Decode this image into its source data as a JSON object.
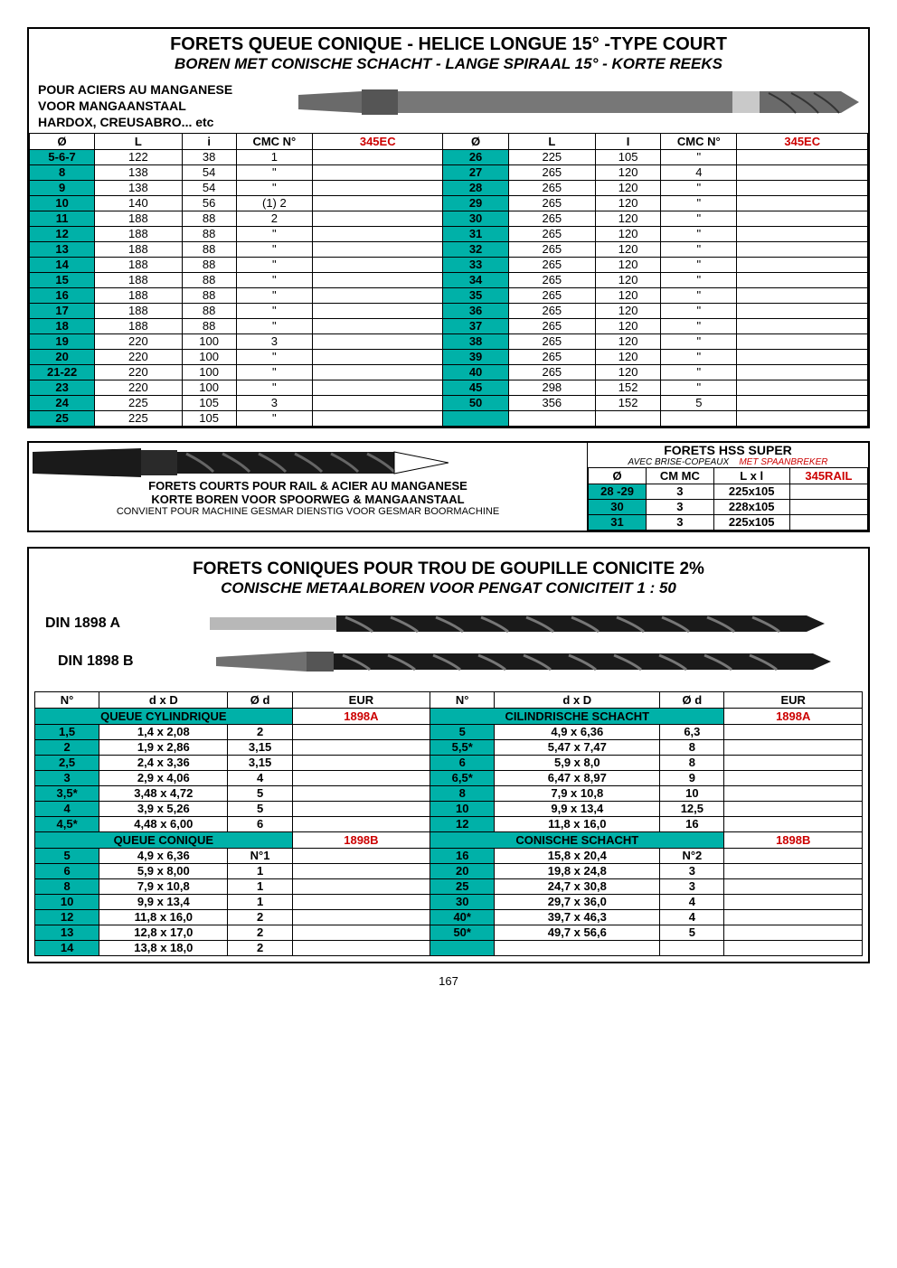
{
  "page_number": "167",
  "colors": {
    "teal": "#00b1a8",
    "red": "#cc0000",
    "border": "#000000",
    "bg": "#ffffff"
  },
  "section1": {
    "title_fr": "FORETS QUEUE CONIQUE  - HELICE LONGUE 15° -TYPE COURT",
    "title_nl": "BOREN MET CONISCHE SCHACHT - LANGE SPIRAAL 15° - KORTE REEKS",
    "material_fr": "POUR  ACIERS AU MANGANESE",
    "material_nl": "VOOR  MANGAANSTAAL",
    "material_note": "HARDOX, CREUSABRO... etc",
    "item_code": "345EC",
    "headers": [
      "Ø",
      "L",
      "i",
      "CMC N°",
      "345EC",
      "Ø",
      "L",
      "I",
      "CMC N°",
      "345EC"
    ],
    "rows_left": [
      [
        "5-6-7",
        "122",
        "38",
        "1",
        ""
      ],
      [
        "8",
        "138",
        "54",
        "\"",
        ""
      ],
      [
        "9",
        "138",
        "54",
        "\"",
        ""
      ],
      [
        "10",
        "140",
        "56",
        "(1) 2",
        ""
      ],
      [
        "11",
        "188",
        "88",
        "2",
        ""
      ],
      [
        "12",
        "188",
        "88",
        "\"",
        ""
      ],
      [
        "13",
        "188",
        "88",
        "\"",
        ""
      ],
      [
        "14",
        "188",
        "88",
        "\"",
        ""
      ],
      [
        "15",
        "188",
        "88",
        "\"",
        ""
      ],
      [
        "16",
        "188",
        "88",
        "\"",
        ""
      ],
      [
        "17",
        "188",
        "88",
        "\"",
        ""
      ],
      [
        "18",
        "188",
        "88",
        "\"",
        ""
      ],
      [
        "19",
        "220",
        "100",
        "3",
        ""
      ],
      [
        "20",
        "220",
        "100",
        "\"",
        ""
      ],
      [
        "21-22",
        "220",
        "100",
        "\"",
        ""
      ],
      [
        "23",
        "220",
        "100",
        "\"",
        ""
      ],
      [
        "24",
        "225",
        "105",
        "3",
        ""
      ],
      [
        "25",
        "225",
        "105",
        "\"",
        ""
      ]
    ],
    "rows_right": [
      [
        "26",
        "225",
        "105",
        "\"",
        ""
      ],
      [
        "27",
        "265",
        "120",
        "4",
        ""
      ],
      [
        "28",
        "265",
        "120",
        "\"",
        ""
      ],
      [
        "29",
        "265",
        "120",
        "\"",
        ""
      ],
      [
        "30",
        "265",
        "120",
        "\"",
        ""
      ],
      [
        "31",
        "265",
        "120",
        "\"",
        ""
      ],
      [
        "32",
        "265",
        "120",
        "\"",
        ""
      ],
      [
        "33",
        "265",
        "120",
        "\"",
        ""
      ],
      [
        "34",
        "265",
        "120",
        "\"",
        ""
      ],
      [
        "35",
        "265",
        "120",
        "\"",
        ""
      ],
      [
        "36",
        "265",
        "120",
        "\"",
        ""
      ],
      [
        "37",
        "265",
        "120",
        "\"",
        ""
      ],
      [
        "38",
        "265",
        "120",
        "\"",
        ""
      ],
      [
        "39",
        "265",
        "120",
        "\"",
        ""
      ],
      [
        "40",
        "265",
        "120",
        "\"",
        ""
      ],
      [
        "45",
        "298",
        "152",
        "\"",
        ""
      ],
      [
        "50",
        "356",
        "152",
        "5",
        ""
      ]
    ]
  },
  "section2": {
    "title_fr": "FORETS COURTS POUR RAIL & ACIER AU MANGANESE",
    "title_nl": "KORTE BOREN VOOR SPOORWEG & MANGAANSTAAL",
    "note": "CONVIENT POUR MACHINE GESMAR   DIENSTIG VOOR GESMAR BOORMACHINE",
    "right_title": "FORETS HSS SUPER",
    "right_sub_fr": "AVEC BRISE-COPEAUX",
    "right_sub_nl": "MET SPAANBREKER",
    "item_code": "345RAIL",
    "headers": [
      "Ø",
      "CM MC",
      "L x l",
      "345RAIL"
    ],
    "rows": [
      [
        "28 -29",
        "3",
        "225x105",
        ""
      ],
      [
        "30",
        "3",
        "228x105",
        ""
      ],
      [
        "31",
        "3",
        "225x105",
        ""
      ]
    ]
  },
  "section3": {
    "title_fr": "FORETS CONIQUES POUR TROU DE GOUPILLE CONICITE  2%",
    "title_nl": "CONISCHE METAALBOREN VOOR PENGAT CONICITEIT  1 : 50",
    "din_a": "DIN 1898 A",
    "din_b": "DIN 1898 B",
    "code_a": "1898A",
    "code_b": "1898B",
    "headers": [
      "N°",
      "d x D",
      "Ø d",
      "EUR",
      "N°",
      "d x D",
      "Ø d",
      "EUR"
    ],
    "sub_cyl_left": "QUEUE CYLINDRIQUE",
    "sub_cyl_right": "CILINDRISCHE SCHACHT",
    "sub_con_left": "QUEUE CONIQUE",
    "sub_con_right": "CONISCHE SCHACHT",
    "cyl_left": [
      [
        "1,5",
        "1,4 x 2,08",
        "2",
        ""
      ],
      [
        "2",
        "1,9 x 2,86",
        "3,15",
        ""
      ],
      [
        "2,5",
        "2,4 x 3,36",
        "3,15",
        ""
      ],
      [
        "3",
        "2,9 x 4,06",
        "4",
        ""
      ],
      [
        "3,5*",
        "3,48 x 4,72",
        "5",
        ""
      ],
      [
        "4",
        "3,9 x 5,26",
        "5",
        ""
      ],
      [
        "4,5*",
        "4,48 x 6,00",
        "6",
        ""
      ]
    ],
    "cyl_right": [
      [
        "5",
        "4,9 x 6,36",
        "6,3",
        ""
      ],
      [
        "5,5*",
        "5,47 x 7,47",
        "8",
        ""
      ],
      [
        "6",
        "5,9 x 8,0",
        "8",
        ""
      ],
      [
        "6,5*",
        "6,47 x 8,97",
        "9",
        ""
      ],
      [
        "8",
        "7,9 x 10,8",
        "10",
        ""
      ],
      [
        "10",
        "9,9 x 13,4",
        "12,5",
        ""
      ],
      [
        "12",
        "11,8 x 16,0",
        "16",
        ""
      ]
    ],
    "con_left": [
      [
        "5",
        "4,9 x 6,36",
        "N°1",
        ""
      ],
      [
        "6",
        "5,9 x 8,00",
        "1",
        ""
      ],
      [
        "8",
        "7,9 x 10,8",
        "1",
        ""
      ],
      [
        "10",
        "9,9 x 13,4",
        "1",
        ""
      ],
      [
        "12",
        "11,8 x 16,0",
        "2",
        ""
      ],
      [
        "13",
        "12,8 x 17,0",
        "2",
        ""
      ],
      [
        "14",
        "13,8 x 18,0",
        "2",
        ""
      ]
    ],
    "con_right": [
      [
        "16",
        "15,8 x 20,4",
        "N°2",
        ""
      ],
      [
        "20",
        "19,8 x 24,8",
        "3",
        ""
      ],
      [
        "25",
        "24,7 x 30,8",
        "3",
        ""
      ],
      [
        "30",
        "29,7 x 36,0",
        "4",
        ""
      ],
      [
        "40*",
        "39,7 x 46,3",
        "4",
        ""
      ],
      [
        "50*",
        "49,7 x 56,6",
        "5",
        ""
      ]
    ]
  }
}
